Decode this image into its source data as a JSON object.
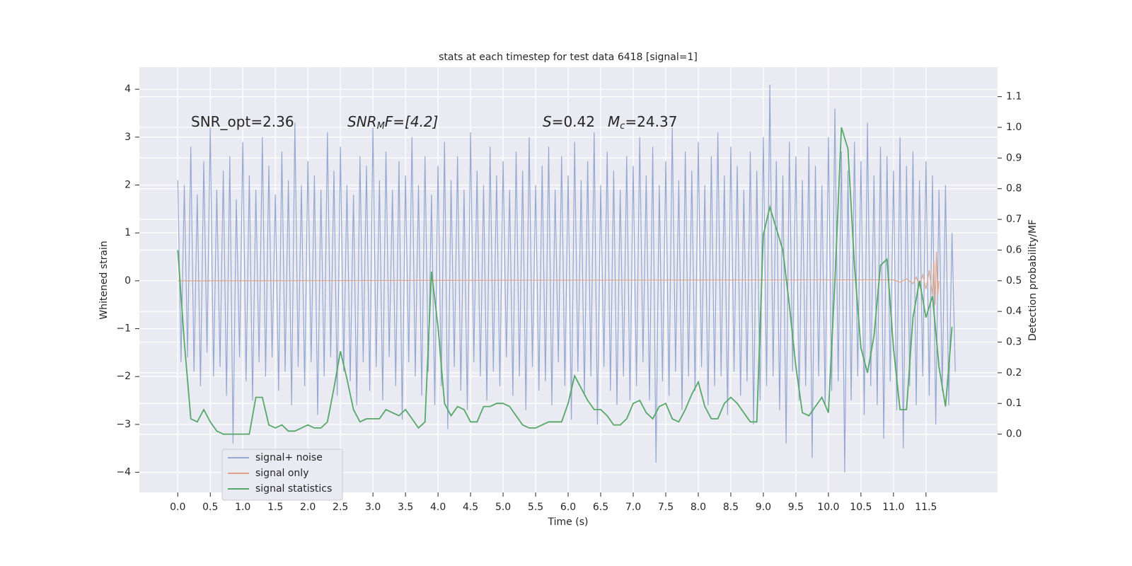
{
  "chart_data": {
    "type": "line",
    "title": "stats at each timestep for test data 6418 [signal=1]",
    "xlabel": "Time (s)",
    "ylabel": "Whitened strain",
    "y2label": "Detection probability/MF",
    "annotations": [
      {
        "parts": [
          "SNR_opt=2.36"
        ]
      },
      {
        "parts": [
          "SNR",
          "M",
          "F=[4.2]"
        ]
      },
      {
        "parts": [
          "S",
          "=0.42"
        ]
      },
      {
        "parts": [
          "M",
          "c",
          "=24.37"
        ]
      }
    ],
    "xlim": [
      -0.59,
      12.6
    ],
    "ylim": [
      -4.42,
      4.46
    ],
    "y2lim": [
      -0.19,
      1.196
    ],
    "xticks": [
      {
        "value": 0,
        "label": "0.0"
      },
      0.5,
      {
        "value": 1,
        "label": "1.0"
      },
      1.5,
      {
        "value": 2,
        "label": "2.0"
      },
      2.5,
      {
        "value": 3,
        "label": "3.0"
      },
      3.5,
      {
        "value": 4,
        "label": "4.0"
      },
      4.5,
      {
        "value": 5,
        "label": "5.0"
      },
      5.5,
      {
        "value": 6,
        "label": "6.0"
      },
      6.5,
      {
        "value": 7,
        "label": "7.0"
      },
      7.5,
      {
        "value": 8,
        "label": "8.0"
      },
      8.5,
      {
        "value": 9,
        "label": "9.0"
      },
      9.5,
      {
        "value": 10,
        "label": "10.0"
      },
      10.5,
      {
        "value": 11,
        "label": "11.0"
      },
      11.5
    ],
    "yticks": [
      {
        "value": -4,
        "label": "−4"
      },
      {
        "value": -3,
        "label": "−3"
      },
      {
        "value": -2,
        "label": "−2"
      },
      {
        "value": -1,
        "label": "−1"
      },
      0,
      1,
      2,
      3,
      4
    ],
    "y2ticks": [
      {
        "value": 0,
        "label": "0.0"
      },
      0.1,
      0.2,
      0.3,
      0.4,
      0.5,
      0.6,
      0.7,
      0.8,
      0.9,
      {
        "value": 1,
        "label": "1.0"
      },
      1.1
    ],
    "grid": true,
    "legend": "lower left",
    "series": [
      {
        "name": "signal+ noise",
        "color": "#94a8d1",
        "x": [
          0,
          0.05,
          0.1,
          0.15,
          0.2,
          0.25,
          0.3,
          0.35,
          0.4,
          0.45,
          0.5,
          0.55,
          0.6,
          0.65,
          0.7,
          0.75,
          0.8,
          0.85,
          0.9,
          0.95,
          1,
          1.05,
          1.1,
          1.15,
          1.2,
          1.25,
          1.3,
          1.35,
          1.4,
          1.45,
          1.5,
          1.55,
          1.6,
          1.65,
          1.7,
          1.75,
          1.8,
          1.85,
          1.9,
          1.95,
          2,
          2.05,
          2.1,
          2.15,
          2.2,
          2.25,
          2.3,
          2.35,
          2.4,
          2.45,
          2.5,
          2.55,
          2.6,
          2.65,
          2.7,
          2.75,
          2.8,
          2.85,
          2.9,
          2.95,
          3,
          3.05,
          3.1,
          3.15,
          3.2,
          3.25,
          3.3,
          3.35,
          3.4,
          3.45,
          3.5,
          3.55,
          3.6,
          3.65,
          3.7,
          3.75,
          3.8,
          3.85,
          3.9,
          3.95,
          4,
          4.05,
          4.1,
          4.15,
          4.2,
          4.25,
          4.3,
          4.35,
          4.4,
          4.45,
          4.5,
          4.55,
          4.6,
          4.65,
          4.7,
          4.75,
          4.8,
          4.85,
          4.9,
          4.95,
          5,
          5.05,
          5.1,
          5.15,
          5.2,
          5.25,
          5.3,
          5.35,
          5.4,
          5.45,
          5.5,
          5.55,
          5.6,
          5.65,
          5.7,
          5.75,
          5.8,
          5.85,
          5.9,
          5.95,
          6,
          6.05,
          6.1,
          6.15,
          6.2,
          6.25,
          6.3,
          6.35,
          6.4,
          6.45,
          6.5,
          6.55,
          6.6,
          6.65,
          6.7,
          6.75,
          6.8,
          6.85,
          6.9,
          6.95,
          7,
          7.05,
          7.1,
          7.15,
          7.2,
          7.25,
          7.3,
          7.35,
          7.4,
          7.45,
          7.5,
          7.55,
          7.6,
          7.65,
          7.7,
          7.75,
          7.8,
          7.85,
          7.9,
          7.95,
          8,
          8.05,
          8.1,
          8.15,
          8.2,
          8.25,
          8.3,
          8.35,
          8.4,
          8.45,
          8.5,
          8.55,
          8.6,
          8.65,
          8.7,
          8.75,
          8.8,
          8.85,
          8.9,
          8.95,
          9,
          9.05,
          9.1,
          9.15,
          9.2,
          9.25,
          9.3,
          9.35,
          9.4,
          9.45,
          9.5,
          9.55,
          9.6,
          9.65,
          9.7,
          9.75,
          9.8,
          9.85,
          9.9,
          9.95,
          10,
          10.05,
          10.1,
          10.15,
          10.2,
          10.25,
          10.3,
          10.35,
          10.4,
          10.45,
          10.5,
          10.55,
          10.6,
          10.65,
          10.7,
          10.75,
          10.8,
          10.85,
          10.9,
          10.95,
          11,
          11.05,
          11.1,
          11.15,
          11.2,
          11.25,
          11.3,
          11.35,
          11.4,
          11.45,
          11.5,
          11.55,
          11.6,
          11.65,
          11.7,
          11.75,
          11.8,
          11.85,
          11.9,
          11.95
        ],
        "values": [
          2.1,
          -1.7,
          2.0,
          -1.6,
          2.8,
          -1.9,
          1.8,
          -2.2,
          2.5,
          -1.5,
          3.2,
          -2.0,
          1.9,
          -1.8,
          2.3,
          -2.4,
          2.6,
          -3.4,
          1.7,
          -1.6,
          2.9,
          -2.1,
          2.2,
          -2.5,
          1.9,
          -1.7,
          3.0,
          -2.0,
          2.4,
          -1.6,
          1.8,
          -2.3,
          2.7,
          -1.9,
          2.1,
          -2.6,
          3.3,
          -1.8,
          2.0,
          -2.2,
          2.5,
          -1.7,
          2.2,
          -2.8,
          1.9,
          -2.0,
          3.1,
          -1.6,
          2.3,
          -2.4,
          2.8,
          -1.9,
          2.0,
          -2.1,
          1.8,
          -2.6,
          2.6,
          -1.7,
          2.4,
          -2.3,
          3.2,
          -1.8,
          2.1,
          -2.5,
          2.7,
          -1.6,
          1.9,
          -2.2,
          2.5,
          -2.9,
          2.2,
          -1.7,
          3.0,
          -2.0,
          2.0,
          -2.4,
          2.6,
          -1.9,
          1.8,
          -2.6,
          2.4,
          -2.2,
          2.9,
          -3.1,
          2.1,
          -1.8,
          2.6,
          -2.3,
          1.9,
          -2.7,
          3.1,
          -1.7,
          2.3,
          -2.0,
          2.0,
          -2.5,
          2.8,
          -1.9,
          2.2,
          -2.2,
          2.5,
          -1.6,
          1.9,
          -2.4,
          2.7,
          -2.0,
          2.3,
          -2.7,
          3.0,
          -1.8,
          2.0,
          -2.3,
          2.4,
          -2.1,
          2.8,
          -2.6,
          1.9,
          -1.7,
          2.6,
          -2.2,
          2.2,
          -2.9,
          2.9,
          -1.9,
          2.1,
          -2.4,
          2.5,
          -2.0,
          3.1,
          -3.0,
          2.0,
          -1.8,
          2.7,
          -2.3,
          2.3,
          -2.6,
          1.9,
          -2.0,
          2.6,
          -2.5,
          2.4,
          -2.2,
          3.0,
          -1.7,
          2.2,
          -2.5,
          2.8,
          -3.8,
          2.0,
          -2.1,
          2.5,
          -2.4,
          3.2,
          -1.9,
          2.1,
          -2.7,
          2.7,
          -2.0,
          2.3,
          -2.3,
          2.9,
          -1.8,
          2.0,
          -2.6,
          2.6,
          -2.2,
          3.1,
          -2.0,
          2.2,
          -2.8,
          2.8,
          -1.9,
          2.4,
          -2.4,
          1.9,
          -2.1,
          2.7,
          -3.0,
          2.3,
          -2.5,
          3.0,
          -2.2,
          4.1,
          -2.0,
          2.5,
          -2.7,
          2.2,
          -3.4,
          2.9,
          -1.9,
          2.6,
          -2.5,
          2.1,
          -2.2,
          2.8,
          -3.7,
          2.4,
          -2.0,
          2.0,
          -2.6,
          3.0,
          -2.3,
          3.6,
          -2.1,
          2.7,
          -4.0,
          2.3,
          -2.5,
          2.9,
          -2.0,
          2.5,
          -2.8,
          3.3,
          -2.2,
          2.2,
          -2.6,
          2.8,
          -3.3,
          2.6,
          -2.1,
          2.3,
          -2.7,
          3.0,
          -3.5,
          2.4,
          -2.2,
          2.7,
          -2.6,
          2.1,
          -2.0,
          2.5,
          -2.4,
          2.2,
          -3.0,
          1.9,
          -2.3,
          2.0,
          -2.6,
          1.0,
          -1.9
        ]
      },
      {
        "name": "signal only",
        "color": "#e0a58a",
        "x": [
          0,
          11.0,
          11.1,
          11.2,
          11.3,
          11.35,
          11.4,
          11.45,
          11.5,
          11.55,
          11.6,
          11.62,
          11.64,
          11.66,
          11.68,
          11.7
        ],
        "values": [
          0,
          0.02,
          -0.03,
          0.04,
          -0.06,
          0.08,
          -0.1,
          0.13,
          -0.17,
          0.22,
          -0.3,
          0.4,
          -0.5,
          0.6,
          -0.3,
          0
        ]
      },
      {
        "name": "signal statistics",
        "color": "#55a868",
        "axis": "y2",
        "x": [
          0,
          0.1,
          0.2,
          0.3,
          0.4,
          0.5,
          0.6,
          0.7,
          0.8,
          0.9,
          1,
          1.1,
          1.2,
          1.3,
          1.4,
          1.5,
          1.6,
          1.7,
          1.8,
          1.9,
          2,
          2.1,
          2.2,
          2.3,
          2.4,
          2.5,
          2.6,
          2.7,
          2.8,
          2.9,
          3,
          3.1,
          3.2,
          3.3,
          3.4,
          3.5,
          3.6,
          3.7,
          3.8,
          3.9,
          4,
          4.1,
          4.2,
          4.3,
          4.4,
          4.5,
          4.6,
          4.7,
          4.8,
          4.9,
          5,
          5.1,
          5.2,
          5.3,
          5.4,
          5.5,
          5.6,
          5.7,
          5.8,
          5.9,
          6,
          6.1,
          6.2,
          6.3,
          6.4,
          6.5,
          6.6,
          6.7,
          6.8,
          6.9,
          7,
          7.1,
          7.2,
          7.3,
          7.4,
          7.5,
          7.6,
          7.7,
          7.8,
          7.9,
          8,
          8.1,
          8.2,
          8.3,
          8.4,
          8.5,
          8.6,
          8.7,
          8.8,
          8.9,
          9,
          9.1,
          9.2,
          9.3,
          9.4,
          9.5,
          9.6,
          9.7,
          9.8,
          9.9,
          10,
          10.1,
          10.2,
          10.3,
          10.4,
          10.5,
          10.6,
          10.7,
          10.8,
          10.9,
          11,
          11.1,
          11.2,
          11.3,
          11.4,
          11.5,
          11.6,
          11.7,
          11.8,
          11.9
        ],
        "values": [
          0.6,
          0.3,
          0.05,
          0.04,
          0.08,
          0.04,
          0.01,
          0,
          0,
          0,
          0,
          0,
          0.12,
          0.12,
          0.03,
          0.02,
          0.03,
          0.01,
          0.01,
          0.02,
          0.03,
          0.02,
          0.02,
          0.04,
          0.15,
          0.27,
          0.18,
          0.08,
          0.04,
          0.05,
          0.05,
          0.05,
          0.08,
          0.07,
          0.06,
          0.08,
          0.05,
          0.02,
          0.04,
          0.53,
          0.35,
          0.1,
          0.06,
          0.09,
          0.08,
          0.04,
          0.04,
          0.09,
          0.09,
          0.1,
          0.1,
          0.09,
          0.06,
          0.03,
          0.02,
          0.02,
          0.03,
          0.04,
          0.04,
          0.04,
          0.1,
          0.19,
          0.15,
          0.11,
          0.08,
          0.08,
          0.06,
          0.03,
          0.03,
          0.05,
          0.1,
          0.11,
          0.07,
          0.05,
          0.09,
          0.1,
          0.05,
          0.04,
          0.08,
          0.13,
          0.17,
          0.09,
          0.05,
          0.05,
          0.1,
          0.12,
          0.1,
          0.07,
          0.04,
          0.04,
          0.65,
          0.74,
          0.67,
          0.6,
          0.42,
          0.22,
          0.07,
          0.06,
          0.09,
          0.12,
          0.07,
          0.5,
          1.0,
          0.93,
          0.55,
          0.28,
          0.2,
          0.32,
          0.55,
          0.57,
          0.28,
          0.08,
          0.08,
          0.38,
          0.5,
          0.38,
          0.45,
          0.22,
          0.09,
          0.35
        ]
      }
    ]
  }
}
